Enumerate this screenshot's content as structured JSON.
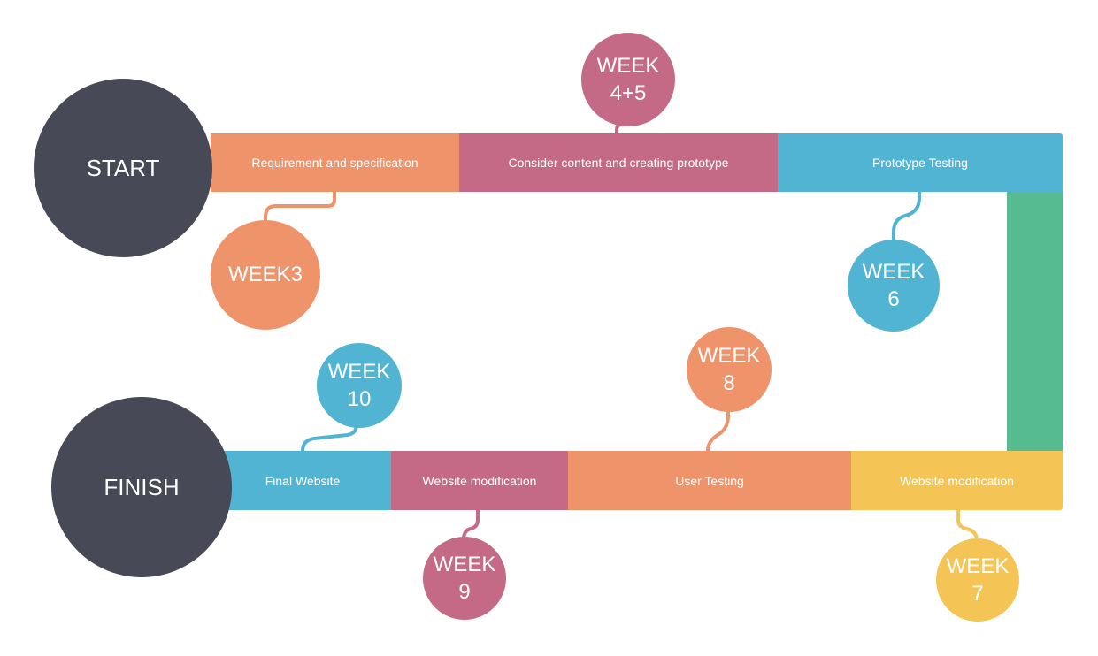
{
  "colors": {
    "node_dark": "#474a56",
    "orange": "#ee936a",
    "pink": "#c56a86",
    "blue": "#52b4d3",
    "green": "#56bb8f",
    "yellow": "#f4c455",
    "text": "#ffffff"
  },
  "nodes": {
    "start": "START",
    "finish": "FINISH"
  },
  "top_row": [
    {
      "label": "Requirement and specification"
    },
    {
      "label": "Consider content and creating prototype"
    },
    {
      "label": "Prototype Testing"
    }
  ],
  "bottom_row": [
    {
      "label": "Final Website"
    },
    {
      "label": "Website modification"
    },
    {
      "label": "User Testing"
    },
    {
      "label": "Website modification"
    }
  ],
  "weeks": {
    "w3": {
      "line1": "WEEK3",
      "line2": ""
    },
    "w45": {
      "line1": "WEEK",
      "line2": "4+5"
    },
    "w6": {
      "line1": "WEEK",
      "line2": "6"
    },
    "w7": {
      "line1": "WEEK",
      "line2": "7"
    },
    "w8": {
      "line1": "WEEK",
      "line2": "8"
    },
    "w9": {
      "line1": "WEEK",
      "line2": "9"
    },
    "w10": {
      "line1": "WEEK",
      "line2": "10"
    }
  }
}
